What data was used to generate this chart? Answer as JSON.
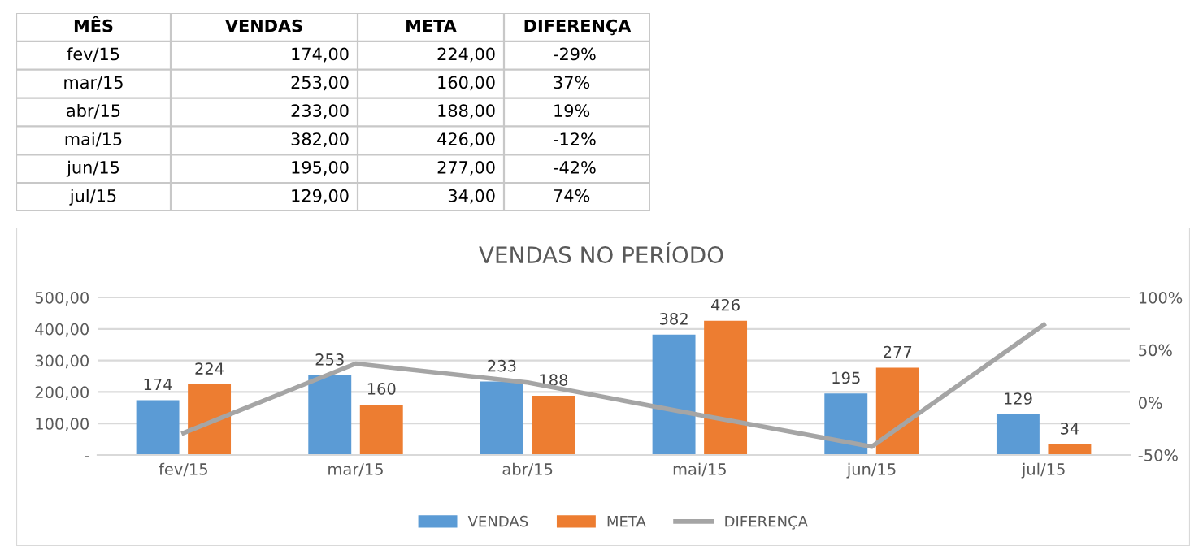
{
  "chart_data": [
    {
      "type": "other",
      "categories": [
        "MÊS",
        "VENDAS",
        "META",
        "DIFERENÇA"
      ],
      "annotations": [
        "fev/15",
        "174,00",
        "224,00",
        "-29%",
        "mar/15",
        "253,00",
        "160,00",
        "37%",
        "abr/15",
        "233,00",
        "188,00",
        "19%",
        "mai/15",
        "382,00",
        "426,00",
        "-12%",
        "jun/15",
        "195,00",
        "277,00",
        "-42%",
        "jul/15",
        "129,00",
        "34,00",
        "74%"
      ]
    },
    {
      "type": "bar",
      "title": "VENDAS NO PERÍODO",
      "categories": [
        "fev/15",
        "mar/15",
        "abr/15",
        "mai/15",
        "jun/15",
        "jul/15"
      ],
      "series": [
        {
          "name": "VENDAS",
          "color": "#5b9bd5",
          "values": [
            174,
            253,
            233,
            382,
            195,
            129
          ],
          "value_labels": [
            "174",
            "253",
            "233",
            "382",
            "195",
            "129"
          ]
        },
        {
          "name": "META",
          "color": "#ed7d31",
          "values": [
            224,
            160,
            188,
            426,
            277,
            34
          ],
          "value_labels": [
            "224",
            "160",
            "188",
            "426",
            "277",
            "34"
          ]
        },
        {
          "name": "DIFERENÇA",
          "type": "line",
          "axis": "y2",
          "color": "#a5a5a5",
          "values": [
            -29,
            37,
            19,
            -12,
            -42,
            74
          ]
        }
      ],
      "ylim": [
        0,
        500
      ],
      "yticks": [
        {
          "value": 0,
          "label": "-"
        },
        {
          "value": 100,
          "label": "100,00"
        },
        {
          "value": 200,
          "label": "200,00"
        },
        {
          "value": 300,
          "label": "300,00"
        },
        {
          "value": 400,
          "label": "400,00"
        },
        {
          "value": 500,
          "label": "500,00"
        }
      ],
      "y2lim": [
        -50,
        100
      ],
      "y2ticks": [
        {
          "value": -50,
          "label": "-50%"
        },
        {
          "value": 0,
          "label": "0%"
        },
        {
          "value": 50,
          "label": "50%"
        },
        {
          "value": 100,
          "label": "100%"
        }
      ],
      "grid": "y",
      "legend": "bottom",
      "marker": "none",
      "line_style": "solid"
    }
  ]
}
